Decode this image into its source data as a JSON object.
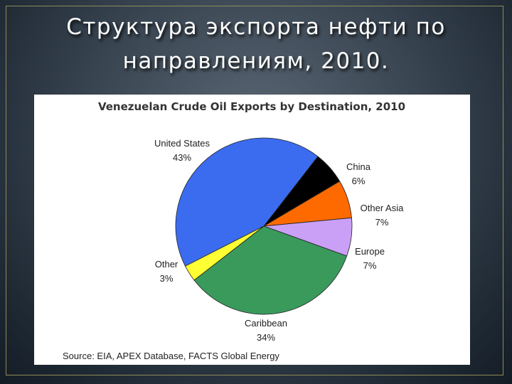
{
  "slide": {
    "title_line1": "Структура экспорта нефти по",
    "title_line2": "направлениям, 2010."
  },
  "chart_data": {
    "type": "pie",
    "title": "Venezuelan Crude Oil Exports by Destination, 2010",
    "source": "Source: EIA, APEX Database, FACTS Global Energy",
    "slices": [
      {
        "label": "United States",
        "value": 43,
        "value_label": "43%",
        "color": "#3b6cf0"
      },
      {
        "label": "China",
        "value": 6,
        "value_label": "6%",
        "color": "#000000"
      },
      {
        "label": "Other Asia",
        "value": 7,
        "value_label": "7%",
        "color": "#ff6a00"
      },
      {
        "label": "Europe",
        "value": 7,
        "value_label": "7%",
        "color": "#c9a0f5"
      },
      {
        "label": "Caribbean",
        "value": 34,
        "value_label": "34%",
        "color": "#3a9a5c"
      },
      {
        "label": "Other",
        "value": 3,
        "value_label": "3%",
        "color": "#ffff33"
      }
    ]
  }
}
